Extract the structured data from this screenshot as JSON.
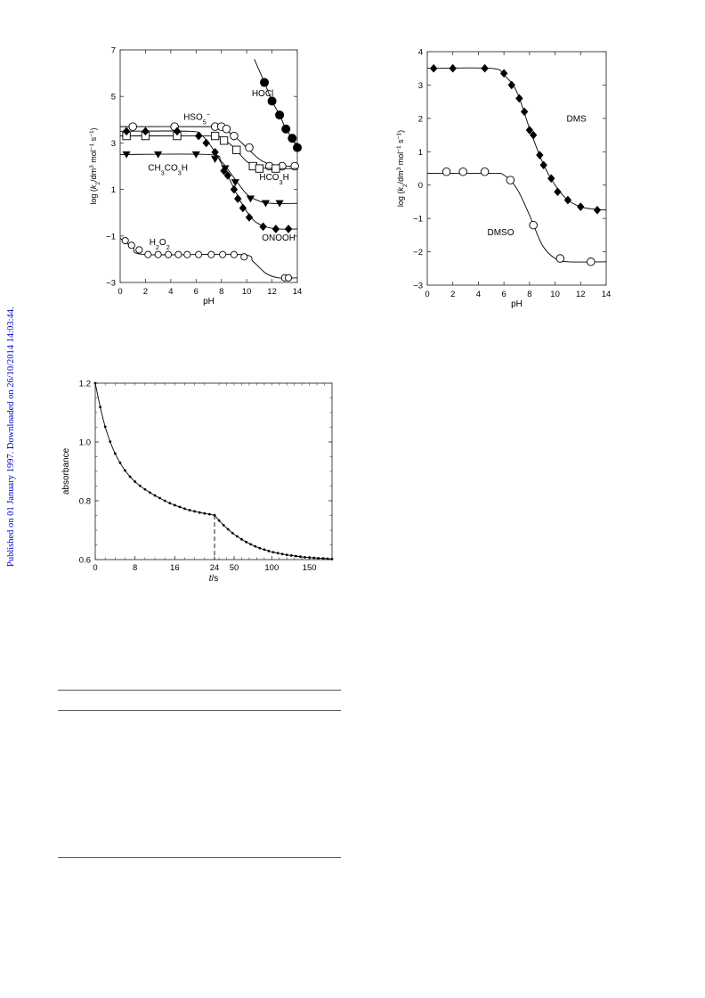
{
  "sidebar_text": "Published on 01 January 1997. Downloaded on 26/10/2014 14:03:44.",
  "colors": {
    "axis": "#333333",
    "sidebar_link": "#0000cc",
    "background": "#ffffff"
  },
  "chart_data": [
    {
      "type": "scatter",
      "title": "",
      "xlabel": "pH",
      "ylabel": "log (k2/dm3 mol-1 s-1)",
      "xlim": [
        0,
        14
      ],
      "ylim": [
        -3,
        7
      ],
      "x_ticks": [
        "0",
        "2",
        "4",
        "6",
        "8",
        "10",
        "12",
        "14"
      ],
      "y_ticks": [
        "−3",
        "−1",
        "1",
        "3",
        "5",
        "7"
      ],
      "grid": false,
      "series": [
        {
          "name": "HOCl",
          "marker": "filled-circle",
          "points": [
            [
              11.4,
              5.6
            ],
            [
              12.0,
              4.8
            ],
            [
              12.6,
              4.2
            ],
            [
              13.1,
              3.6
            ],
            [
              13.6,
              3.2
            ],
            [
              14.0,
              2.8
            ]
          ],
          "curve": [
            [
              10.6,
              6.6
            ],
            [
              11.4,
              5.6
            ],
            [
              12.0,
              4.8
            ],
            [
              12.6,
              4.2
            ],
            [
              13.1,
              3.6
            ],
            [
              13.6,
              3.2
            ],
            [
              14.0,
              2.8
            ]
          ]
        },
        {
          "name": "HSO5−",
          "marker": "open-circle",
          "points": [
            [
              1.0,
              3.7
            ],
            [
              4.3,
              3.7
            ],
            [
              7.5,
              3.7
            ],
            [
              8.0,
              3.7
            ],
            [
              8.4,
              3.6
            ],
            [
              9.0,
              3.3
            ],
            [
              10.2,
              2.8
            ],
            [
              11.8,
              2.0
            ],
            [
              12.8,
              2.0
            ],
            [
              13.8,
              2.0
            ]
          ],
          "curve": [
            [
              0.0,
              3.7
            ],
            [
              7.0,
              3.7
            ],
            [
              8.0,
              3.65
            ],
            [
              9.0,
              3.3
            ],
            [
              10.0,
              2.8
            ],
            [
              11.0,
              2.3
            ],
            [
              12.0,
              2.05
            ],
            [
              13.0,
              2.0
            ],
            [
              14.0,
              2.0
            ]
          ]
        },
        {
          "name": "HCO3H",
          "marker": "open-square",
          "points": [
            [
              0.5,
              3.3
            ],
            [
              2.0,
              3.3
            ],
            [
              4.5,
              3.3
            ],
            [
              7.5,
              3.3
            ],
            [
              8.2,
              3.1
            ],
            [
              9.2,
              2.7
            ],
            [
              10.5,
              2.0
            ],
            [
              11.0,
              1.9
            ],
            [
              12.3,
              1.9
            ]
          ],
          "curve": [
            [
              0.0,
              3.3
            ],
            [
              7.0,
              3.3
            ],
            [
              8.0,
              3.2
            ],
            [
              9.0,
              2.8
            ],
            [
              10.0,
              2.2
            ],
            [
              11.0,
              1.95
            ],
            [
              12.0,
              1.9
            ],
            [
              14.0,
              1.9
            ]
          ]
        },
        {
          "name": "ONOOH",
          "marker": "filled-diamond",
          "points": [
            [
              0.5,
              3.5
            ],
            [
              2.0,
              3.5
            ],
            [
              4.5,
              3.5
            ],
            [
              6.2,
              3.3
            ],
            [
              6.8,
              3.0
            ],
            [
              7.5,
              2.6
            ],
            [
              8.2,
              1.8
            ],
            [
              8.5,
              1.6
            ],
            [
              9.0,
              1.0
            ],
            [
              9.3,
              0.6
            ],
            [
              9.7,
              0.2
            ],
            [
              10.2,
              -0.2
            ],
            [
              11.3,
              -0.6
            ],
            [
              12.3,
              -0.7
            ],
            [
              13.3,
              -0.7
            ]
          ],
          "curve": [
            [
              0.0,
              3.5
            ],
            [
              5.5,
              3.5
            ],
            [
              6.5,
              3.3
            ],
            [
              7.5,
              2.6
            ],
            [
              8.5,
              1.6
            ],
            [
              9.5,
              0.5
            ],
            [
              10.5,
              -0.3
            ],
            [
              11.5,
              -0.6
            ],
            [
              12.5,
              -0.7
            ],
            [
              14.0,
              -0.7
            ]
          ]
        },
        {
          "name": "CH3CO3H",
          "marker": "filled-triangle-down",
          "points": [
            [
              0.5,
              2.5
            ],
            [
              3.0,
              2.5
            ],
            [
              6.0,
              2.5
            ],
            [
              7.5,
              2.3
            ],
            [
              8.3,
              1.9
            ],
            [
              9.1,
              1.3
            ],
            [
              10.3,
              0.6
            ],
            [
              11.5,
              0.4
            ],
            [
              12.6,
              0.4
            ]
          ],
          "curve": [
            [
              0.0,
              2.5
            ],
            [
              7.0,
              2.5
            ],
            [
              8.0,
              2.2
            ],
            [
              9.0,
              1.5
            ],
            [
              10.0,
              0.8
            ],
            [
              11.0,
              0.5
            ],
            [
              12.0,
              0.4
            ],
            [
              14.0,
              0.4
            ]
          ]
        },
        {
          "name": "H2O2",
          "marker": "open-circle-square",
          "points": [
            [
              0.4,
              -1.2
            ],
            [
              0.9,
              -1.4
            ],
            [
              1.5,
              -1.6
            ],
            [
              2.2,
              -1.8
            ],
            [
              3.0,
              -1.8
            ],
            [
              3.8,
              -1.8
            ],
            [
              4.6,
              -1.8
            ],
            [
              5.3,
              -1.8
            ],
            [
              6.2,
              -1.8
            ],
            [
              7.2,
              -1.8
            ],
            [
              8.1,
              -1.8
            ],
            [
              9.0,
              -1.8
            ],
            [
              9.8,
              -1.9
            ],
            [
              13.0,
              -2.8
            ],
            [
              13.3,
              -2.8
            ]
          ],
          "curve": [
            [
              0.0,
              -1.1
            ],
            [
              1.0,
              -1.5
            ],
            [
              2.0,
              -1.8
            ],
            [
              9.5,
              -1.8
            ],
            [
              10.5,
              -2.1
            ],
            [
              11.5,
              -2.6
            ],
            [
              12.5,
              -2.8
            ],
            [
              14.0,
              -2.8
            ]
          ]
        }
      ],
      "annotations": [
        {
          "text": "HOCl",
          "at": [
            10.4,
            5.0
          ]
        },
        {
          "text": "HSO5−",
          "at": [
            5.0,
            4.0
          ]
        },
        {
          "text": "HCO3H",
          "at": [
            11.0,
            1.4
          ]
        },
        {
          "text": "CH3CO3H",
          "at": [
            2.2,
            1.8
          ]
        },
        {
          "text": "ONOOH",
          "at": [
            11.2,
            -1.2
          ]
        },
        {
          "text": "H2O2",
          "at": [
            2.3,
            -1.4
          ]
        }
      ]
    },
    {
      "type": "scatter",
      "title": "",
      "xlabel": "pH",
      "ylabel": "log (k2/dm3 mol-1 s-1)",
      "xlim": [
        0,
        14
      ],
      "ylim": [
        -3,
        4
      ],
      "x_ticks": [
        "0",
        "2",
        "4",
        "6",
        "8",
        "10",
        "12",
        "14"
      ],
      "y_ticks": [
        "−3",
        "−2",
        "−1",
        "0",
        "1",
        "2",
        "3",
        "4"
      ],
      "grid": false,
      "series": [
        {
          "name": "DMS",
          "marker": "filled-diamond",
          "points": [
            [
              0.5,
              3.5
            ],
            [
              2.0,
              3.5
            ],
            [
              4.5,
              3.5
            ],
            [
              6.0,
              3.35
            ],
            [
              6.6,
              3.0
            ],
            [
              7.2,
              2.6
            ],
            [
              7.6,
              2.2
            ],
            [
              8.0,
              1.65
            ],
            [
              8.3,
              1.5
            ],
            [
              8.8,
              0.9
            ],
            [
              9.1,
              0.6
            ],
            [
              9.7,
              0.2
            ],
            [
              10.2,
              -0.2
            ],
            [
              11.0,
              -0.45
            ],
            [
              12.0,
              -0.65
            ],
            [
              13.3,
              -0.75
            ]
          ],
          "curve": [
            [
              0.0,
              3.5
            ],
            [
              5.0,
              3.5
            ],
            [
              6.0,
              3.3
            ],
            [
              7.0,
              2.8
            ],
            [
              8.0,
              1.7
            ],
            [
              9.0,
              0.7
            ],
            [
              10.0,
              0.0
            ],
            [
              11.0,
              -0.45
            ],
            [
              12.0,
              -0.65
            ],
            [
              13.0,
              -0.72
            ],
            [
              14.0,
              -0.75
            ]
          ]
        },
        {
          "name": "DMSO",
          "marker": "open-circle",
          "points": [
            [
              1.5,
              0.4
            ],
            [
              2.8,
              0.4
            ],
            [
              4.5,
              0.4
            ],
            [
              6.5,
              0.15
            ],
            [
              8.3,
              -1.2
            ],
            [
              10.4,
              -2.2
            ],
            [
              12.8,
              -2.3
            ]
          ],
          "curve": [
            [
              0.0,
              0.35
            ],
            [
              5.0,
              0.35
            ],
            [
              6.0,
              0.3
            ],
            [
              7.0,
              -0.1
            ],
            [
              8.0,
              -0.9
            ],
            [
              9.0,
              -1.8
            ],
            [
              10.0,
              -2.2
            ],
            [
              11.0,
              -2.3
            ],
            [
              14.0,
              -2.3
            ]
          ]
        }
      ],
      "annotations": [
        {
          "text": "DMS",
          "at": [
            10.9,
            1.9
          ]
        },
        {
          "text": "DMSO",
          "at": [
            4.7,
            -1.5
          ]
        }
      ]
    },
    {
      "type": "line",
      "title": "",
      "xlabel": "t/s",
      "ylabel": "absorbance",
      "ylim": [
        0.6,
        1.2
      ],
      "y_ticks": [
        "0.6",
        "0.8",
        "1.0",
        "1.2"
      ],
      "x_ticks": [
        "0",
        "8",
        "16",
        "24",
        "50",
        "100",
        "150"
      ],
      "grid": false,
      "note": "split time axis: 0–24 s then 24–180 s; dashed drop line at t = 24",
      "series": [
        {
          "name": "",
          "segment1_x": [
            0,
            1,
            2,
            3,
            4,
            5,
            6,
            7,
            8,
            9,
            10,
            11,
            12,
            13,
            14,
            15,
            16,
            17,
            18,
            19,
            20,
            21,
            22,
            23,
            24
          ],
          "segment1_y": [
            1.2,
            1.119,
            1.052,
            1.001,
            0.961,
            0.929,
            0.903,
            0.882,
            0.865,
            0.851,
            0.839,
            0.828,
            0.818,
            0.809,
            0.8,
            0.792,
            0.785,
            0.779,
            0.773,
            0.768,
            0.764,
            0.76,
            0.757,
            0.754,
            0.751
          ],
          "segment2_x": [
            30,
            36,
            42,
            48,
            54,
            60,
            66,
            72,
            78,
            84,
            90,
            96,
            102,
            108,
            114,
            120,
            126,
            132,
            138,
            144,
            150,
            156,
            162,
            168,
            174,
            180
          ],
          "segment2_y": [
            0.733,
            0.717,
            0.703,
            0.69,
            0.679,
            0.669,
            0.66,
            0.652,
            0.645,
            0.639,
            0.634,
            0.629,
            0.625,
            0.622,
            0.619,
            0.616,
            0.614,
            0.612,
            0.61,
            0.608,
            0.607,
            0.606,
            0.605,
            0.604,
            0.603,
            0.602
          ]
        }
      ]
    }
  ]
}
